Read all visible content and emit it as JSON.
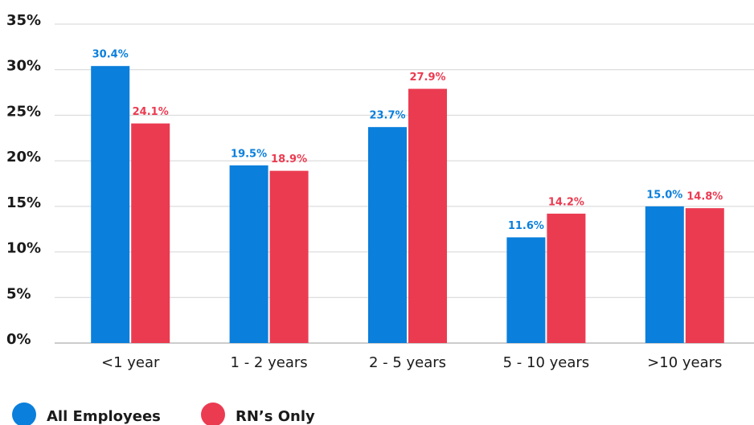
{
  "chart_data": {
    "type": "bar",
    "categories": [
      "<1 year",
      "1 - 2 years",
      "2 - 5 years",
      "5 - 10 years",
      ">10 years"
    ],
    "series": [
      {
        "name": "All Employees",
        "color": "#0a7fdc",
        "values": [
          30.4,
          19.5,
          23.7,
          11.6,
          15.0
        ],
        "value_labels": [
          "30.4%",
          "19.5%",
          "23.7%",
          "11.6%",
          "15.0%"
        ]
      },
      {
        "name": "RN’s Only",
        "color": "#eb3b51",
        "values": [
          24.1,
          18.9,
          27.9,
          14.2,
          14.8
        ],
        "value_labels": [
          "24.1%",
          "18.9%",
          "27.9%",
          "14.2%",
          "14.8%"
        ]
      }
    ],
    "ylim": [
      0,
      35
    ],
    "yticks": [
      {
        "value": 0,
        "label": "0%"
      },
      {
        "value": 5,
        "label": "5%"
      },
      {
        "value": 10,
        "label": "10%"
      },
      {
        "value": 15,
        "label": "15%"
      },
      {
        "value": 20,
        "label": "20%"
      },
      {
        "value": 25,
        "label": "25%"
      },
      {
        "value": 30,
        "label": "30%"
      },
      {
        "value": 35,
        "label": "35%"
      }
    ],
    "grid": true
  }
}
